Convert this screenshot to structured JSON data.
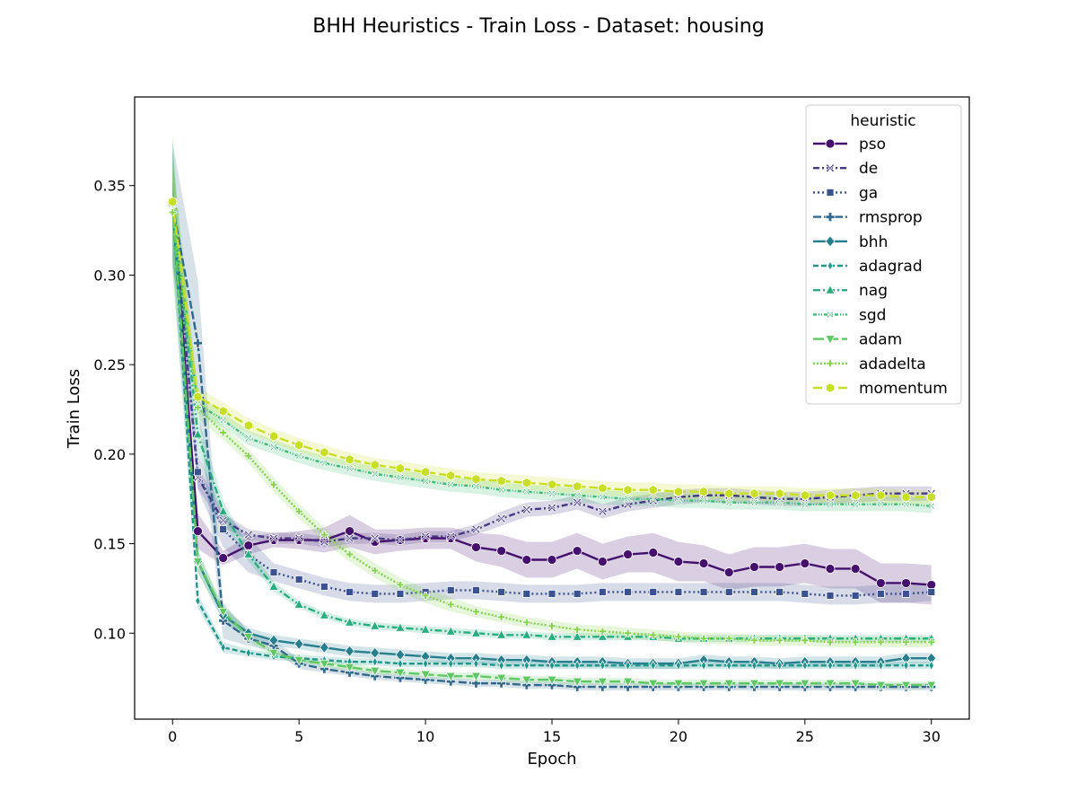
{
  "chart_data": {
    "type": "line",
    "title": "BHH Heuristics - Train Loss - Dataset: housing",
    "xlabel": "Epoch",
    "ylabel": "Train Loss",
    "xlim": [
      -1.5,
      31.5
    ],
    "ylim": [
      0.052,
      0.3995
    ],
    "xticks": [
      0,
      5,
      10,
      15,
      20,
      25,
      30
    ],
    "xtick_labels": [
      "0",
      "5",
      "10",
      "15",
      "20",
      "25",
      "30"
    ],
    "yticks": [
      0.1,
      0.15,
      0.2,
      0.25,
      0.3,
      0.35
    ],
    "ytick_labels": [
      "0.10",
      "0.15",
      "0.20",
      "0.25",
      "0.30",
      "0.35"
    ],
    "grid": false,
    "legend": {
      "title": "heuristic",
      "position": "top-right"
    },
    "x": [
      0,
      1,
      2,
      3,
      4,
      5,
      6,
      7,
      8,
      9,
      10,
      11,
      12,
      13,
      14,
      15,
      16,
      17,
      18,
      19,
      20,
      21,
      22,
      23,
      24,
      25,
      26,
      27,
      28,
      29,
      30
    ],
    "series": [
      {
        "name": "pso",
        "color": "#440f6d",
        "dash": "",
        "marker": "circle",
        "values": [
          0.34,
          0.157,
          0.142,
          0.149,
          0.152,
          0.152,
          0.152,
          0.157,
          0.151,
          0.152,
          0.153,
          0.153,
          0.148,
          0.146,
          0.141,
          0.141,
          0.146,
          0.14,
          0.144,
          0.145,
          0.14,
          0.139,
          0.134,
          0.137,
          0.137,
          0.139,
          0.136,
          0.136,
          0.128,
          0.128,
          0.127
        ],
        "band": [
          0.012,
          0.01,
          0.004,
          0.005,
          0.004,
          0.005,
          0.007,
          0.009,
          0.007,
          0.006,
          0.006,
          0.006,
          0.008,
          0.009,
          0.01,
          0.01,
          0.01,
          0.01,
          0.01,
          0.011,
          0.011,
          0.01,
          0.01,
          0.011,
          0.011,
          0.011,
          0.011,
          0.011,
          0.011,
          0.011,
          0.011
        ]
      },
      {
        "name": "de",
        "color": "#453883",
        "dash": "7,3,2,3",
        "marker": "x",
        "values": [
          0.34,
          0.187,
          0.163,
          0.155,
          0.153,
          0.153,
          0.151,
          0.153,
          0.153,
          0.152,
          0.154,
          0.154,
          0.158,
          0.164,
          0.169,
          0.17,
          0.173,
          0.168,
          0.172,
          0.174,
          0.176,
          0.177,
          0.177,
          0.176,
          0.175,
          0.175,
          0.176,
          0.177,
          0.178,
          0.178,
          0.178
        ],
        "band": [
          0.012,
          0.006,
          0.004,
          0.003,
          0.003,
          0.003,
          0.003,
          0.003,
          0.003,
          0.003,
          0.003,
          0.003,
          0.003,
          0.004,
          0.004,
          0.004,
          0.004,
          0.004,
          0.004,
          0.004,
          0.004,
          0.004,
          0.004,
          0.004,
          0.004,
          0.004,
          0.004,
          0.004,
          0.004,
          0.004,
          0.004
        ]
      },
      {
        "name": "ga",
        "color": "#3a5290",
        "dash": "2,3",
        "marker": "square",
        "values": [
          0.34,
          0.19,
          0.158,
          0.144,
          0.134,
          0.13,
          0.126,
          0.123,
          0.122,
          0.122,
          0.123,
          0.124,
          0.124,
          0.123,
          0.122,
          0.122,
          0.122,
          0.123,
          0.123,
          0.123,
          0.123,
          0.123,
          0.123,
          0.123,
          0.123,
          0.122,
          0.121,
          0.121,
          0.122,
          0.122,
          0.123
        ],
        "band": [
          0.012,
          0.01,
          0.01,
          0.01,
          0.005,
          0.005,
          0.005,
          0.005,
          0.005,
          0.005,
          0.005,
          0.005,
          0.005,
          0.005,
          0.005,
          0.005,
          0.005,
          0.005,
          0.005,
          0.005,
          0.005,
          0.005,
          0.005,
          0.005,
          0.005,
          0.005,
          0.005,
          0.005,
          0.005,
          0.005,
          0.005
        ]
      },
      {
        "name": "rmsprop",
        "color": "#30688e",
        "dash": "9,3",
        "marker": "plus",
        "values": [
          0.339,
          0.262,
          0.107,
          0.097,
          0.093,
          0.083,
          0.08,
          0.078,
          0.076,
          0.075,
          0.074,
          0.073,
          0.072,
          0.072,
          0.071,
          0.071,
          0.07,
          0.07,
          0.07,
          0.07,
          0.07,
          0.07,
          0.07,
          0.07,
          0.07,
          0.07,
          0.07,
          0.07,
          0.07,
          0.07,
          0.07
        ],
        "band": [
          0.035,
          0.035,
          0.01,
          0.004,
          0.003,
          0.003,
          0.002,
          0.002,
          0.002,
          0.002,
          0.002,
          0.002,
          0.002,
          0.002,
          0.002,
          0.002,
          0.002,
          0.002,
          0.002,
          0.002,
          0.002,
          0.002,
          0.002,
          0.002,
          0.002,
          0.002,
          0.002,
          0.002,
          0.002,
          0.002,
          0.002
        ]
      },
      {
        "name": "bhh",
        "color": "#257f8e",
        "dash": "",
        "marker": "diamond",
        "values": [
          0.34,
          0.14,
          0.11,
          0.1,
          0.096,
          0.094,
          0.092,
          0.09,
          0.089,
          0.088,
          0.087,
          0.086,
          0.086,
          0.085,
          0.085,
          0.084,
          0.084,
          0.084,
          0.083,
          0.083,
          0.083,
          0.085,
          0.084,
          0.084,
          0.083,
          0.084,
          0.084,
          0.084,
          0.084,
          0.086,
          0.086
        ],
        "band": [
          0.03,
          0.006,
          0.004,
          0.003,
          0.003,
          0.003,
          0.003,
          0.003,
          0.003,
          0.003,
          0.003,
          0.003,
          0.003,
          0.003,
          0.003,
          0.003,
          0.003,
          0.003,
          0.003,
          0.003,
          0.003,
          0.003,
          0.003,
          0.003,
          0.003,
          0.003,
          0.003,
          0.003,
          0.003,
          0.003,
          0.003
        ]
      },
      {
        "name": "adagrad",
        "color": "#1f968b",
        "dash": "6,3",
        "marker": "thin-diamond",
        "values": [
          0.34,
          0.118,
          0.092,
          0.089,
          0.087,
          0.086,
          0.085,
          0.084,
          0.084,
          0.083,
          0.083,
          0.083,
          0.083,
          0.082,
          0.082,
          0.082,
          0.082,
          0.082,
          0.082,
          0.082,
          0.082,
          0.082,
          0.082,
          0.082,
          0.082,
          0.082,
          0.082,
          0.082,
          0.082,
          0.082,
          0.082
        ],
        "band": [
          0.035,
          0.004,
          0.003,
          0.002,
          0.002,
          0.002,
          0.002,
          0.002,
          0.002,
          0.002,
          0.002,
          0.002,
          0.002,
          0.002,
          0.002,
          0.002,
          0.002,
          0.002,
          0.002,
          0.002,
          0.002,
          0.002,
          0.002,
          0.002,
          0.002,
          0.002,
          0.002,
          0.002,
          0.002,
          0.002,
          0.002
        ]
      },
      {
        "name": "nag",
        "color": "#29af7f",
        "dash": "8,3,2,3",
        "marker": "triangle",
        "values": [
          0.34,
          0.211,
          0.168,
          0.144,
          0.126,
          0.116,
          0.11,
          0.106,
          0.104,
          0.103,
          0.102,
          0.101,
          0.1,
          0.099,
          0.099,
          0.098,
          0.098,
          0.098,
          0.098,
          0.098,
          0.097,
          0.097,
          0.097,
          0.097,
          0.097,
          0.097,
          0.097,
          0.097,
          0.097,
          0.097,
          0.097
        ],
        "band": [
          0.03,
          0.01,
          0.006,
          0.004,
          0.003,
          0.002,
          0.002,
          0.002,
          0.002,
          0.002,
          0.002,
          0.002,
          0.002,
          0.002,
          0.002,
          0.002,
          0.002,
          0.002,
          0.002,
          0.002,
          0.002,
          0.002,
          0.002,
          0.002,
          0.002,
          0.002,
          0.002,
          0.002,
          0.002,
          0.002,
          0.002
        ]
      },
      {
        "name": "sgd",
        "color": "#3dbc74",
        "dash": "4,2,1,2,1,2",
        "marker": "x-filled",
        "values": [
          0.34,
          0.228,
          0.219,
          0.209,
          0.204,
          0.199,
          0.195,
          0.192,
          0.189,
          0.187,
          0.185,
          0.183,
          0.182,
          0.18,
          0.179,
          0.178,
          0.177,
          0.176,
          0.175,
          0.175,
          0.174,
          0.174,
          0.173,
          0.173,
          0.173,
          0.172,
          0.172,
          0.172,
          0.172,
          0.172,
          0.171
        ],
        "band": [
          0.02,
          0.005,
          0.004,
          0.004,
          0.004,
          0.004,
          0.004,
          0.004,
          0.004,
          0.004,
          0.004,
          0.004,
          0.004,
          0.004,
          0.004,
          0.004,
          0.004,
          0.004,
          0.004,
          0.004,
          0.004,
          0.004,
          0.004,
          0.004,
          0.004,
          0.004,
          0.004,
          0.004,
          0.004,
          0.004,
          0.004
        ]
      },
      {
        "name": "adam",
        "color": "#5ec962",
        "dash": "12,4",
        "marker": "triangle-down",
        "values": [
          0.34,
          0.14,
          0.112,
          0.098,
          0.089,
          0.085,
          0.083,
          0.081,
          0.079,
          0.078,
          0.077,
          0.076,
          0.076,
          0.075,
          0.074,
          0.074,
          0.073,
          0.073,
          0.073,
          0.072,
          0.072,
          0.072,
          0.072,
          0.072,
          0.072,
          0.072,
          0.072,
          0.072,
          0.071,
          0.071,
          0.071
        ],
        "band": [
          0.04,
          0.006,
          0.004,
          0.003,
          0.002,
          0.002,
          0.002,
          0.002,
          0.002,
          0.002,
          0.002,
          0.002,
          0.002,
          0.002,
          0.002,
          0.002,
          0.002,
          0.002,
          0.002,
          0.002,
          0.002,
          0.002,
          0.002,
          0.002,
          0.002,
          0.002,
          0.002,
          0.002,
          0.002,
          0.002,
          0.002
        ]
      },
      {
        "name": "adadelta",
        "color": "#84d44b",
        "dash": "2,2",
        "marker": "plus-filled",
        "values": [
          0.335,
          0.226,
          0.212,
          0.199,
          0.183,
          0.168,
          0.155,
          0.144,
          0.135,
          0.127,
          0.121,
          0.116,
          0.112,
          0.109,
          0.106,
          0.104,
          0.102,
          0.101,
          0.1,
          0.099,
          0.098,
          0.097,
          0.097,
          0.096,
          0.096,
          0.096,
          0.095,
          0.095,
          0.095,
          0.095,
          0.095
        ],
        "band": [
          0.03,
          0.006,
          0.004,
          0.004,
          0.004,
          0.004,
          0.004,
          0.004,
          0.004,
          0.004,
          0.004,
          0.004,
          0.003,
          0.003,
          0.003,
          0.003,
          0.003,
          0.003,
          0.003,
          0.003,
          0.003,
          0.003,
          0.003,
          0.003,
          0.003,
          0.003,
          0.003,
          0.003,
          0.003,
          0.003,
          0.003
        ]
      },
      {
        "name": "momentum",
        "color": "#c8df25",
        "dash": "10,4",
        "marker": "hexagon",
        "values": [
          0.341,
          0.232,
          0.224,
          0.216,
          0.21,
          0.205,
          0.201,
          0.197,
          0.194,
          0.192,
          0.19,
          0.188,
          0.186,
          0.185,
          0.184,
          0.183,
          0.182,
          0.181,
          0.18,
          0.18,
          0.179,
          0.179,
          0.178,
          0.178,
          0.178,
          0.177,
          0.177,
          0.177,
          0.177,
          0.176,
          0.176
        ],
        "band": [
          0.02,
          0.005,
          0.005,
          0.004,
          0.004,
          0.004,
          0.004,
          0.004,
          0.004,
          0.004,
          0.004,
          0.004,
          0.004,
          0.004,
          0.004,
          0.004,
          0.004,
          0.004,
          0.004,
          0.004,
          0.004,
          0.004,
          0.004,
          0.004,
          0.004,
          0.004,
          0.004,
          0.004,
          0.004,
          0.004,
          0.004
        ]
      }
    ]
  }
}
